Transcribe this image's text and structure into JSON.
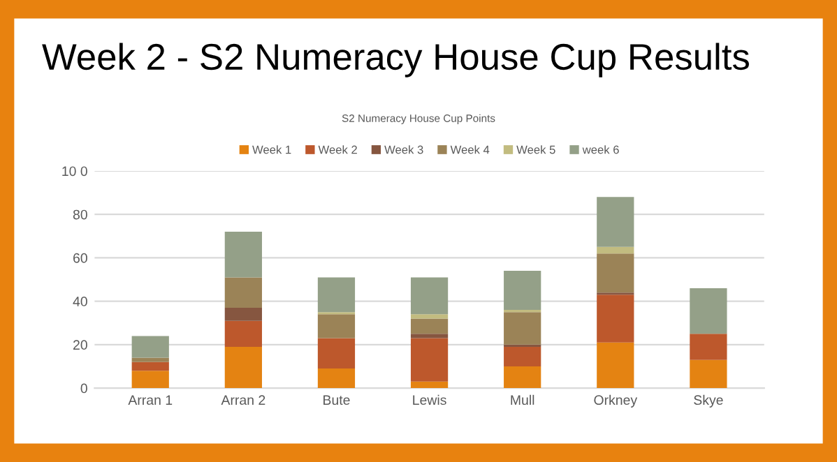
{
  "chart_data": {
    "type": "bar",
    "stacked": true,
    "title": "Week 2 - S2 Numeracy House Cup Results",
    "subtitle": "S2 Numeracy House Cup Points",
    "categories": [
      "Arran 1",
      "Arran 2",
      "Bute",
      "Lewis",
      "Mull",
      "Orkney",
      "Skye"
    ],
    "series": [
      {
        "name": "Week 1",
        "color": "#e48312",
        "values": [
          8,
          19,
          9,
          3,
          10,
          21,
          13
        ]
      },
      {
        "name": "Week 2",
        "color": "#bd582c",
        "values": [
          4,
          12,
          14,
          20,
          9,
          22,
          12
        ]
      },
      {
        "name": "Week 3",
        "color": "#865640",
        "values": [
          0,
          6,
          0,
          2,
          1,
          1,
          0
        ]
      },
      {
        "name": "Week 4",
        "color": "#9b8357",
        "values": [
          2,
          14,
          11,
          7,
          15,
          18,
          0
        ]
      },
      {
        "name": "Week 5",
        "color": "#c2bc80",
        "values": [
          0,
          0,
          1,
          2,
          1,
          3,
          0
        ]
      },
      {
        "name": "week 6",
        "color": "#94a088",
        "values": [
          10,
          21,
          16,
          17,
          18,
          23,
          21
        ]
      }
    ],
    "ylim": [
      0,
      100
    ],
    "yticks": [
      0,
      20,
      40,
      60,
      80,
      {
        "value": 100,
        "label": "10 0"
      }
    ],
    "grid": "y",
    "legend": "top"
  }
}
